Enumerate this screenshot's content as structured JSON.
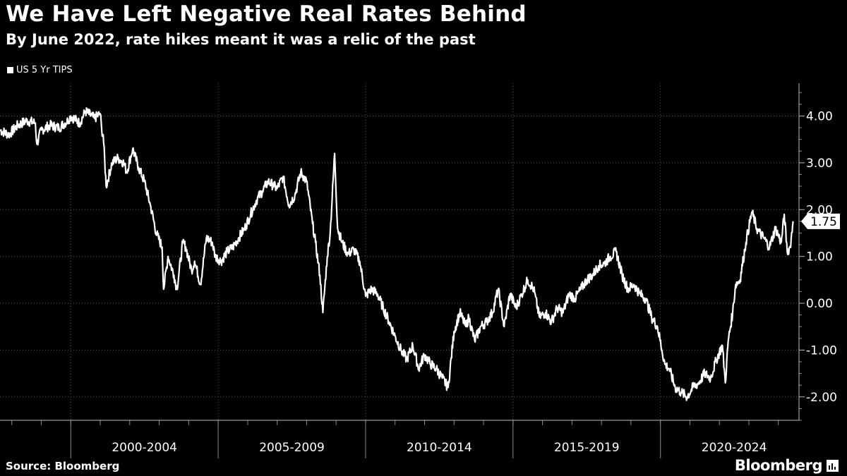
{
  "chart_data": {
    "type": "line",
    "title": "We Have Left Negative Real Rates Behind",
    "subtitle": "By June 2022, rate hikes meant it was a relic of the past",
    "source": "Source: Bloomberg",
    "brand": "Bloomberg",
    "xlabel": "",
    "ylabel": "",
    "xlim": [
      1997.6,
      2024.7
    ],
    "ylim": [
      -2.5,
      4.7
    ],
    "yticks": [
      4,
      3,
      2,
      1,
      0,
      -1,
      -2
    ],
    "ytick_labels": [
      "4.00",
      "3.00",
      "2.00",
      "1.00",
      "0.00",
      "-1.00",
      "-2.00"
    ],
    "xtick_labels": [
      "2000-2004",
      "2005-2009",
      "2010-2014",
      "2015-2019",
      "2020-2024"
    ],
    "xtick_centers": [
      2002.5,
      2007.5,
      2012.5,
      2017.5,
      2022.5
    ],
    "period_boundaries": [
      2000,
      2005,
      2010,
      2015,
      2020
    ],
    "grid": true,
    "legend_position": "top-left",
    "last_value_label": "1.75",
    "series": [
      {
        "name": "US 5 Yr TIPS",
        "color": "#ffffff",
        "x": [
          1997.6,
          1997.9,
          1998.2,
          1998.5,
          1998.8,
          1998.85,
          1999.0,
          1999.3,
          1999.6,
          1999.9,
          2000.0,
          2000.3,
          2000.5,
          2000.8,
          2001.0,
          2001.05,
          2001.1,
          2001.2,
          2001.4,
          2001.6,
          2001.8,
          2001.9,
          2002.1,
          2002.3,
          2002.5,
          2002.7,
          2002.9,
          2003.1,
          2003.15,
          2003.3,
          2003.5,
          2003.6,
          2003.8,
          2003.9,
          2004.1,
          2004.2,
          2004.4,
          2004.6,
          2004.8,
          2004.9,
          2005.1,
          2005.3,
          2005.5,
          2005.7,
          2005.9,
          2006.1,
          2006.3,
          2006.5,
          2006.7,
          2006.9,
          2007.0,
          2007.2,
          2007.4,
          2007.6,
          2007.8,
          2008.0,
          2008.2,
          2008.3,
          2008.45,
          2008.55,
          2008.7,
          2008.8,
          2008.95,
          2009.05,
          2009.2,
          2009.4,
          2009.6,
          2009.8,
          2010.0,
          2010.2,
          2010.4,
          2010.6,
          2010.8,
          2011.0,
          2011.2,
          2011.4,
          2011.6,
          2011.8,
          2012.0,
          2012.2,
          2012.4,
          2012.6,
          2012.8,
          2013.0,
          2013.2,
          2013.4,
          2013.5,
          2013.7,
          2013.9,
          2014.1,
          2014.3,
          2014.5,
          2014.7,
          2014.9,
          2015.1,
          2015.3,
          2015.5,
          2015.7,
          2015.9,
          2016.1,
          2016.3,
          2016.5,
          2016.7,
          2016.9,
          2017.1,
          2017.3,
          2017.5,
          2017.7,
          2017.9,
          2018.1,
          2018.3,
          2018.5,
          2018.7,
          2018.9,
          2019.1,
          2019.3,
          2019.5,
          2019.7,
          2019.9,
          2020.05,
          2020.15,
          2020.3,
          2020.5,
          2020.7,
          2020.9,
          2021.1,
          2021.3,
          2021.5,
          2021.7,
          2021.9,
          2022.1,
          2022.2,
          2022.3,
          2022.45,
          2022.55,
          2022.7,
          2022.9,
          2023.1,
          2023.3,
          2023.5,
          2023.7,
          2023.9,
          2024.1,
          2024.2,
          2024.3,
          2024.4,
          2024.5
        ],
        "values": [
          3.7,
          3.6,
          3.8,
          3.9,
          3.85,
          3.4,
          3.7,
          3.8,
          3.75,
          3.9,
          4.0,
          3.85,
          4.1,
          3.95,
          4.05,
          3.7,
          3.6,
          2.5,
          3.0,
          3.1,
          3.0,
          2.8,
          3.3,
          2.9,
          2.6,
          2.1,
          1.5,
          1.2,
          0.3,
          1.0,
          0.6,
          0.3,
          1.3,
          1.2,
          0.7,
          0.9,
          0.4,
          1.4,
          1.3,
          1.0,
          0.9,
          1.1,
          1.2,
          1.4,
          1.6,
          1.9,
          2.2,
          2.4,
          2.6,
          2.5,
          2.45,
          2.7,
          2.1,
          2.3,
          2.8,
          2.6,
          1.7,
          1.3,
          0.6,
          -0.2,
          1.0,
          1.5,
          3.2,
          1.6,
          1.3,
          1.05,
          1.15,
          0.9,
          0.15,
          0.3,
          0.2,
          -0.1,
          -0.4,
          -0.7,
          -1.0,
          -1.2,
          -0.9,
          -1.4,
          -1.1,
          -1.3,
          -1.4,
          -1.6,
          -1.8,
          -0.6,
          -0.2,
          -0.5,
          -0.3,
          -0.8,
          -0.5,
          -0.4,
          -0.2,
          0.3,
          -0.5,
          0.2,
          -0.1,
          0.2,
          0.5,
          0.3,
          -0.3,
          -0.2,
          -0.4,
          -0.1,
          -0.2,
          0.2,
          0.1,
          0.3,
          0.5,
          0.6,
          0.8,
          0.85,
          1.0,
          1.1,
          0.6,
          0.3,
          0.4,
          0.2,
          0.1,
          -0.3,
          -0.5,
          -1.0,
          -1.3,
          -1.4,
          -1.8,
          -1.9,
          -2.0,
          -1.8,
          -1.7,
          -1.5,
          -1.6,
          -1.2,
          -0.9,
          -1.7,
          -0.8,
          -0.2,
          0.4,
          0.5,
          1.3,
          1.95,
          1.55,
          1.4,
          1.2,
          1.6,
          1.3,
          1.9,
          1.1,
          1.2,
          1.75
        ]
      }
    ]
  }
}
